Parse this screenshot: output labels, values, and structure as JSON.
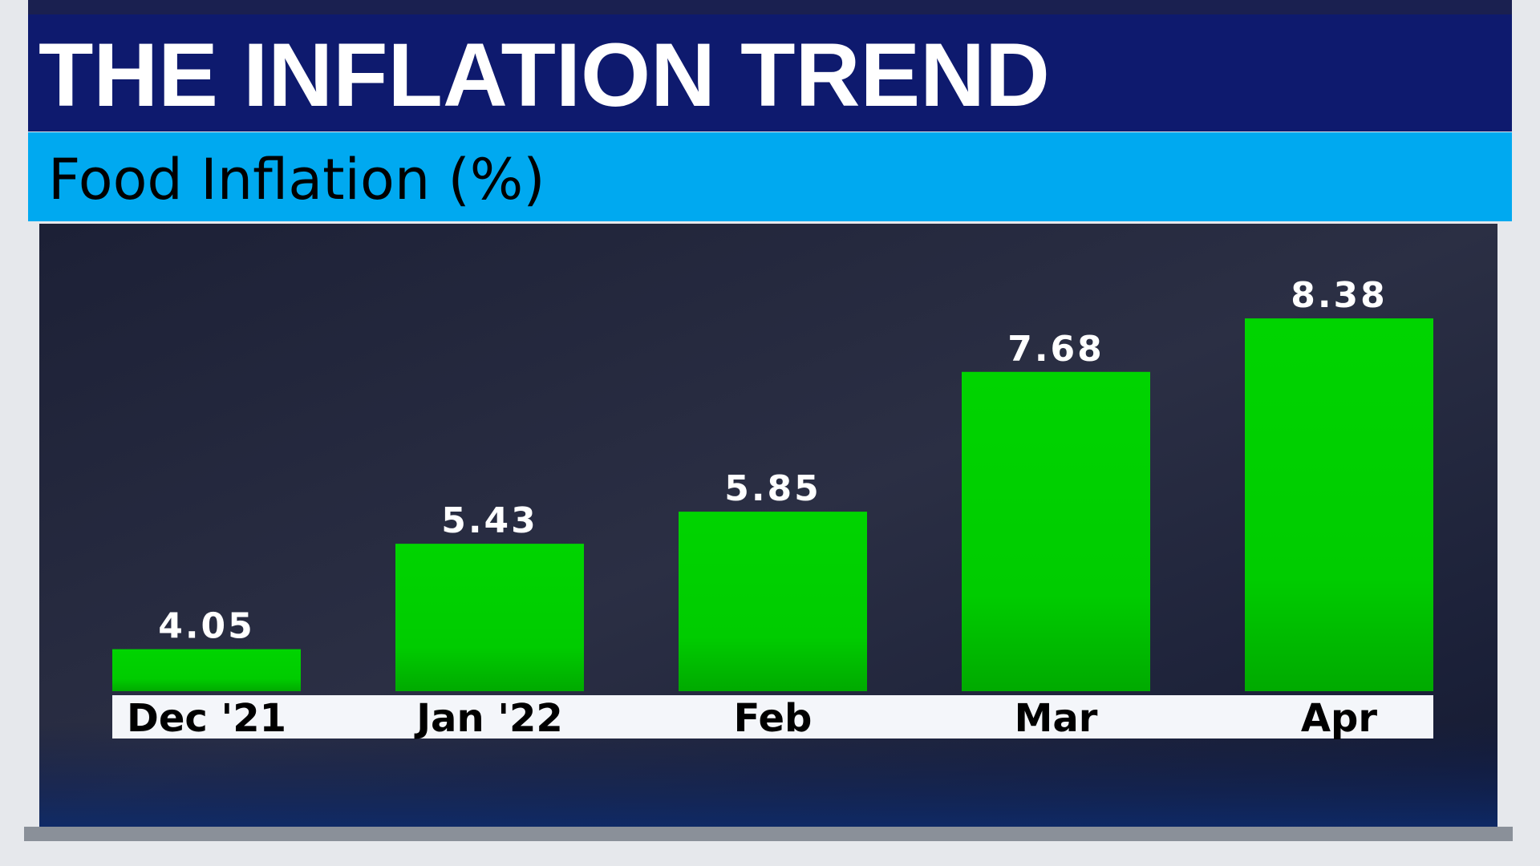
{
  "chart_data": {
    "type": "bar",
    "title": "THE INFLATION TREND",
    "subtitle": "Food Inflation (%)",
    "categories": [
      "Dec '21",
      "Jan '22",
      "Feb",
      "Mar",
      "Apr"
    ],
    "values": [
      4.05,
      5.43,
      5.85,
      7.68,
      8.38
    ],
    "color": "#00cc00",
    "ylim": [
      3.5,
      9
    ]
  }
}
